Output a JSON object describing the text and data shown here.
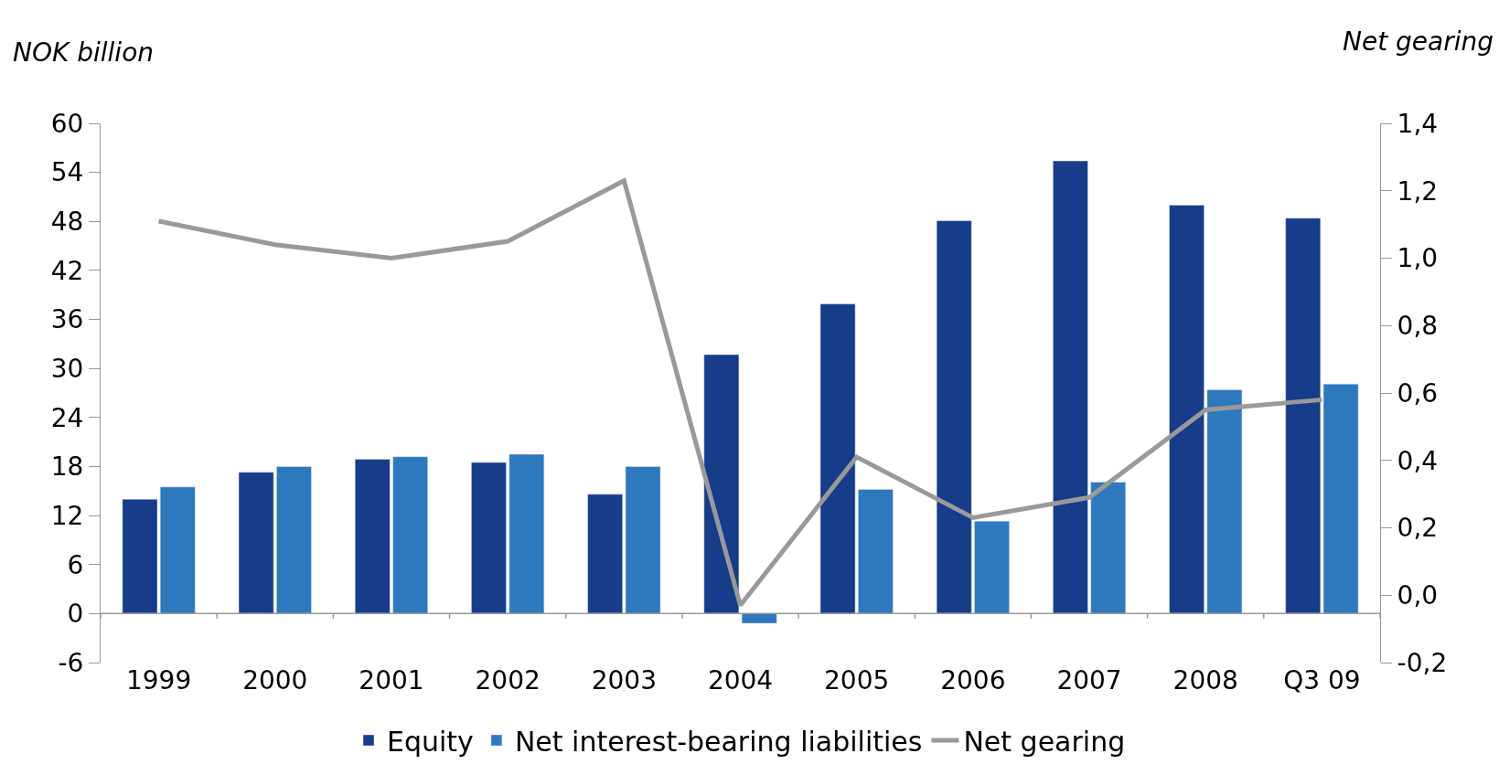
{
  "chart_data": {
    "type": "bar",
    "ylabel": "NOK billion",
    "y2label": "Net gearing",
    "categories": [
      "1999",
      "2000",
      "2001",
      "2002",
      "2003",
      "2004",
      "2005",
      "2006",
      "2007",
      "2008",
      "Q3 09"
    ],
    "series": [
      {
        "name": "Equity",
        "color": "#163c8a",
        "values": [
          14.0,
          17.3,
          18.9,
          18.5,
          14.6,
          31.7,
          37.9,
          48.1,
          55.4,
          50.0,
          48.4
        ]
      },
      {
        "name": "Net interest-bearing liabilities",
        "color": "#2e78be",
        "values": [
          15.5,
          18.0,
          19.2,
          19.5,
          18.0,
          -1.2,
          15.2,
          11.3,
          16.1,
          27.4,
          28.1
        ]
      },
      {
        "name": "Net gearing",
        "color": "#999999",
        "type": "line",
        "axis": "y2",
        "marker": "none",
        "line_style": "solid",
        "values": [
          1.11,
          1.04,
          1.0,
          1.05,
          1.23,
          -0.03,
          0.41,
          0.23,
          0.29,
          0.55,
          0.58
        ]
      }
    ],
    "ylim": [
      -6,
      60
    ],
    "yticks": [
      -6,
      0,
      6,
      12,
      18,
      24,
      30,
      36,
      42,
      48,
      54,
      60
    ],
    "y2lim": [
      -0.2,
      1.4
    ],
    "y2ticks": [
      {
        "value": -0.2,
        "label": "-0,2"
      },
      {
        "value": 0,
        "label": "0,0"
      },
      {
        "value": 0.2,
        "label": "0,2"
      },
      {
        "value": 0.4,
        "label": "0,4"
      },
      {
        "value": 0.6,
        "label": "0,6"
      },
      {
        "value": 0.8,
        "label": "0,8"
      },
      {
        "value": 1.0,
        "label": "1,0"
      },
      {
        "value": 1.2,
        "label": "1,2"
      },
      {
        "value": 1.4,
        "label": "1,4"
      }
    ],
    "legend": "bottom"
  }
}
